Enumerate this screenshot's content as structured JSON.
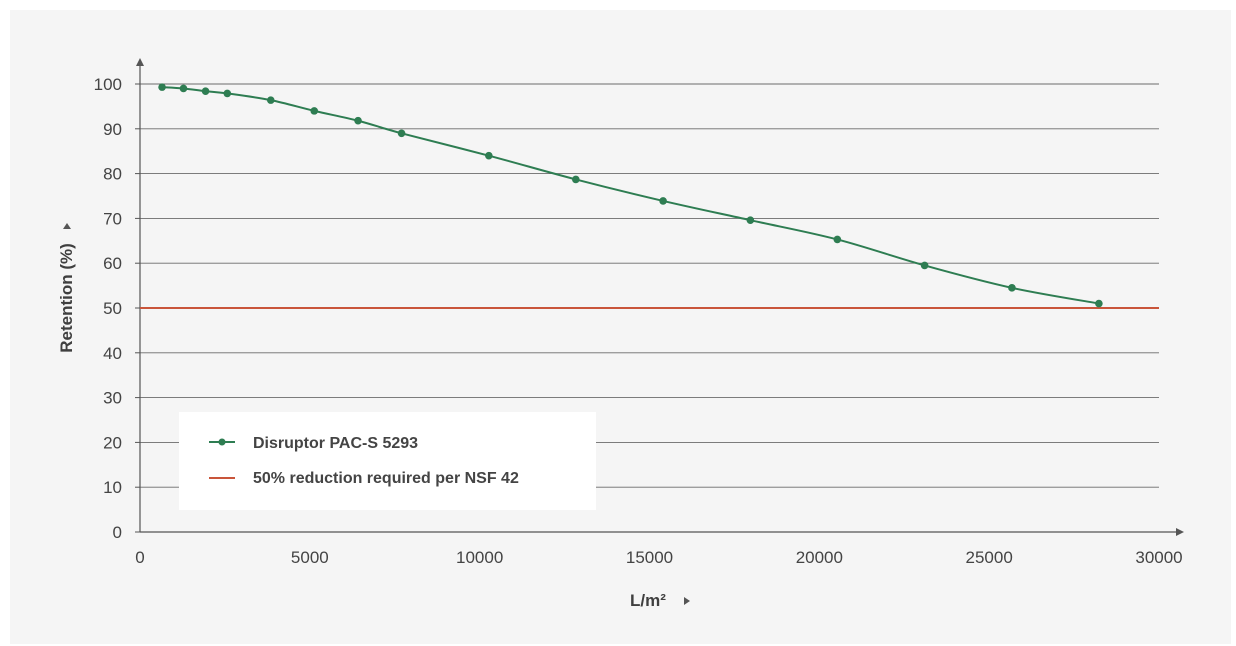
{
  "chart_data": {
    "type": "line",
    "xlabel": "L/m²",
    "ylabel": "Retention (%)",
    "xlim": [
      0,
      30000
    ],
    "ylim": [
      0,
      100
    ],
    "x_ticks": [
      "0",
      "5000",
      "10000",
      "15000",
      "20000",
      "25000",
      "30000"
    ],
    "y_ticks": [
      "0",
      "10",
      "20",
      "30",
      "40",
      "50",
      "60",
      "70",
      "80",
      "90",
      "100"
    ],
    "grid": "horizontal",
    "legend_position": "lower-left",
    "series": [
      {
        "name": "Disruptor PAC-S 5293",
        "color": "#2e7d52",
        "x": [
          650,
          1280,
          1930,
          2570,
          3850,
          5130,
          6420,
          7700,
          10270,
          12830,
          15400,
          17970,
          20530,
          23100,
          25670,
          28230
        ],
        "y": [
          99.3,
          99.0,
          98.4,
          97.9,
          96.4,
          94.0,
          91.8,
          89.0,
          84.0,
          78.7,
          73.9,
          69.6,
          65.3,
          59.5,
          54.5,
          51.0
        ]
      },
      {
        "name": "50% reduction required per NSF 42",
        "color": "#c9553a",
        "x": [
          0,
          30000
        ],
        "y": [
          50,
          50
        ]
      }
    ]
  }
}
